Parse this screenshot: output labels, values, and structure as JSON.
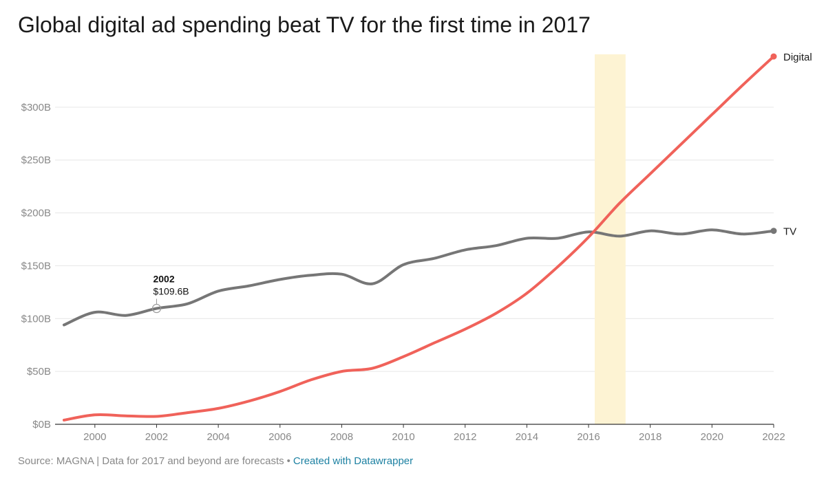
{
  "title": "Global digital ad spending beat TV for the first time in 2017",
  "footer": {
    "source": "Source: MAGNA | Data for 2017 and beyond are forecasts",
    "separator": "•",
    "credit": "Created with Datawrapper"
  },
  "colors": {
    "digital": "#f0625a",
    "tv": "#767676",
    "highlight": "#fdf3d3",
    "grid": "#e6e6e6",
    "axis_text": "#888888",
    "credit_link": "#1d81a2"
  },
  "chart_data": {
    "type": "line",
    "title": "Global digital ad spending beat TV for the first time in 2017",
    "xlim": [
      1999,
      2022
    ],
    "ylim": [
      0,
      350
    ],
    "x_ticks": [
      2000,
      2002,
      2004,
      2006,
      2008,
      2010,
      2012,
      2014,
      2016,
      2018,
      2020,
      2022
    ],
    "y_ticks": [
      0,
      50,
      100,
      150,
      200,
      250,
      300
    ],
    "y_tick_labels": [
      "$0B",
      "$50B",
      "$100B",
      "$150B",
      "$200B",
      "$250B",
      "$300B"
    ],
    "grid": true,
    "highlight_range": [
      2016.2,
      2017.2
    ],
    "x": [
      1999,
      2000,
      2001,
      2002,
      2003,
      2004,
      2005,
      2006,
      2007,
      2008,
      2009,
      2010,
      2011,
      2012,
      2013,
      2014,
      2015,
      2016,
      2017,
      2018,
      2019,
      2020,
      2021,
      2022
    ],
    "series": [
      {
        "name": "TV",
        "color": "#767676",
        "values": [
          94,
          106,
          103,
          109.6,
          114,
          126,
          131,
          137,
          141,
          142,
          133,
          151,
          157,
          165,
          169,
          176,
          176,
          182,
          178,
          183,
          180,
          184,
          180,
          183
        ]
      },
      {
        "name": "Digital",
        "color": "#f0625a",
        "values": [
          4,
          9,
          8,
          7.5,
          11,
          15,
          22,
          31,
          42,
          50,
          53,
          64,
          77,
          90,
          105,
          124,
          149,
          177,
          209,
          237,
          265,
          293,
          321,
          348
        ]
      }
    ],
    "annotation": {
      "series": "TV",
      "x": 2002,
      "y": 109.6,
      "label_year": "2002",
      "label_value": "$109.6B"
    }
  }
}
